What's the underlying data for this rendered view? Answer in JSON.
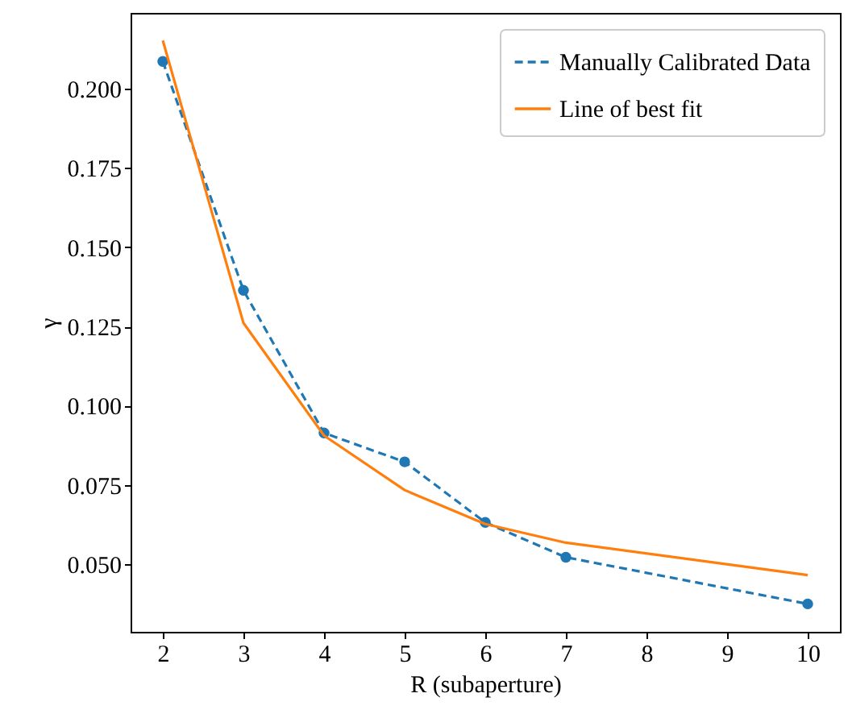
{
  "chart_data": {
    "type": "line",
    "xlabel": "R (subaperture)",
    "ylabel": "γ",
    "x": [
      2,
      3,
      4,
      5,
      6,
      7,
      10
    ],
    "series": [
      {
        "name": "Manually Calibrated Data",
        "color": "#1f77b4",
        "values": [
          0.2086,
          0.1364,
          0.0914,
          0.0823,
          0.0632,
          0.0522,
          0.0375
        ],
        "line_style": "dashed",
        "marker": "circle"
      },
      {
        "name": "Line of best fit",
        "color": "#ff7f0e",
        "values": [
          0.2152,
          0.1261,
          0.0906,
          0.0734,
          0.0627,
          0.0568,
          0.0466
        ],
        "line_style": "solid",
        "marker": "none"
      }
    ],
    "xlim": [
      1.6,
      10.4
    ],
    "xticks": [
      2,
      3,
      4,
      5,
      6,
      7,
      8,
      9,
      10
    ],
    "ylim": [
      0.0287,
      0.2239
    ],
    "yticks": [
      {
        "value": 0.05,
        "label": "0.050"
      },
      {
        "value": 0.075,
        "label": "0.075"
      },
      {
        "value": 0.1,
        "label": "0.100"
      },
      {
        "value": 0.125,
        "label": "0.125"
      },
      {
        "value": 0.15,
        "label": "0.150"
      },
      {
        "value": 0.175,
        "label": "0.175"
      },
      {
        "value": 0.2,
        "label": "0.200"
      }
    ],
    "legend": "top right",
    "grid": false
  }
}
